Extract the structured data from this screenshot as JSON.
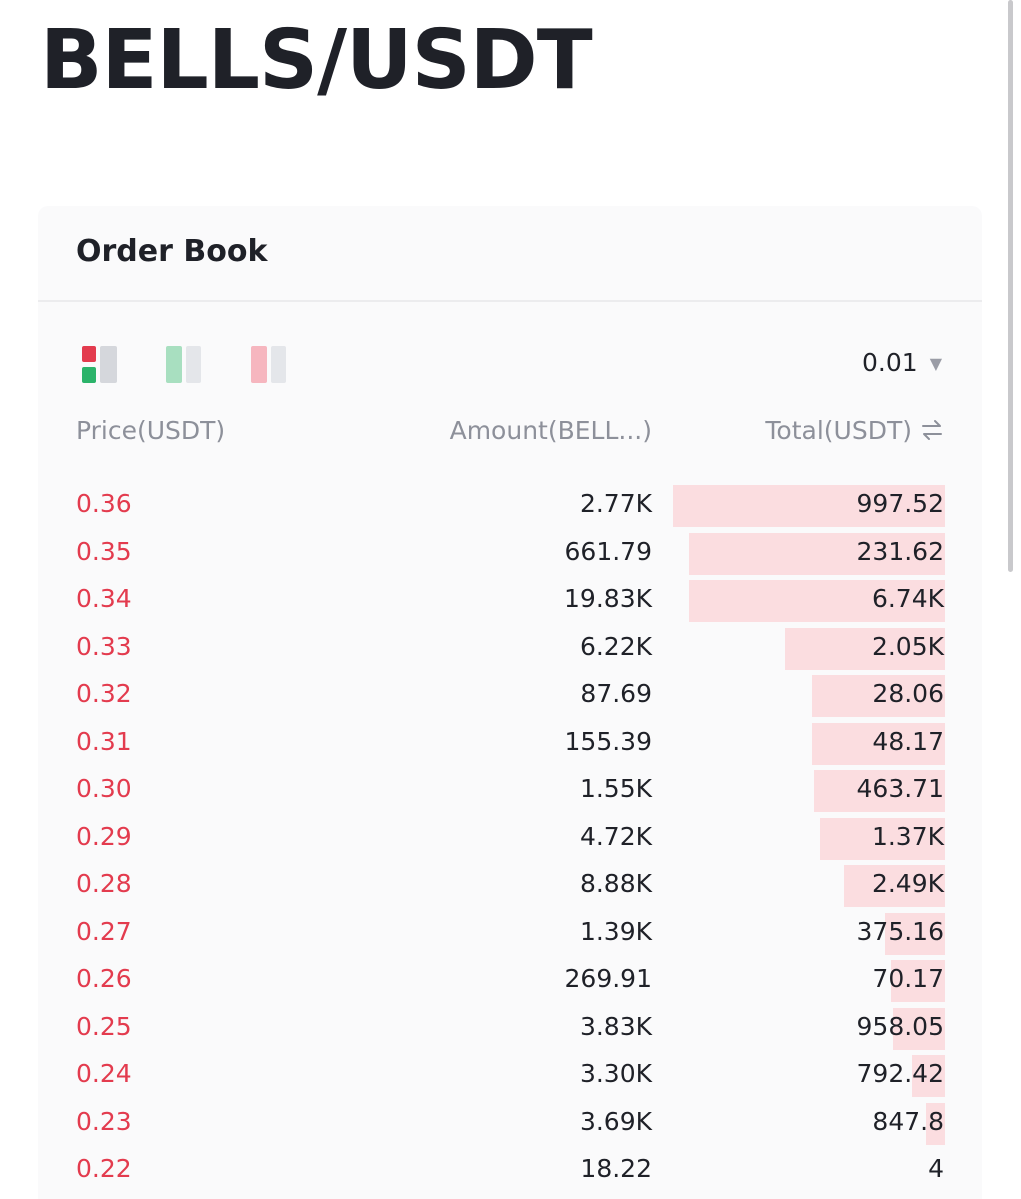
{
  "pair": "BELLS/USDT",
  "order_book": {
    "title": "Order Book",
    "precision": "0.01",
    "columns": {
      "price": "Price(USDT)",
      "amount": "Amount(BELL...)",
      "total": "Total(USDT)"
    },
    "colors": {
      "ask": "#e33b4e",
      "ask_bar": "#fbdde0",
      "bid": "#2bb36a"
    },
    "asks": [
      {
        "price": "0.36",
        "amount": "2.77K",
        "total": "997.52",
        "depth": 1.0
      },
      {
        "price": "0.35",
        "amount": "661.79",
        "total": "231.62",
        "depth": 0.94
      },
      {
        "price": "0.34",
        "amount": "19.83K",
        "total": "6.74K",
        "depth": 0.94
      },
      {
        "price": "0.33",
        "amount": "6.22K",
        "total": "2.05K",
        "depth": 0.59
      },
      {
        "price": "0.32",
        "amount": "87.69",
        "total": "28.06",
        "depth": 0.49
      },
      {
        "price": "0.31",
        "amount": "155.39",
        "total": "48.17",
        "depth": 0.49
      },
      {
        "price": "0.30",
        "amount": "1.55K",
        "total": "463.71",
        "depth": 0.48
      },
      {
        "price": "0.29",
        "amount": "4.72K",
        "total": "1.37K",
        "depth": 0.46
      },
      {
        "price": "0.28",
        "amount": "8.88K",
        "total": "2.49K",
        "depth": 0.37
      },
      {
        "price": "0.27",
        "amount": "1.39K",
        "total": "375.16",
        "depth": 0.22
      },
      {
        "price": "0.26",
        "amount": "269.91",
        "total": "70.17",
        "depth": 0.2
      },
      {
        "price": "0.25",
        "amount": "3.83K",
        "total": "958.05",
        "depth": 0.19
      },
      {
        "price": "0.24",
        "amount": "3.30K",
        "total": "792.42",
        "depth": 0.12
      },
      {
        "price": "0.23",
        "amount": "3.69K",
        "total": "847.8",
        "depth": 0.07
      },
      {
        "price": "0.22",
        "amount": "18.22",
        "total": "4",
        "depth": 0.0
      }
    ]
  }
}
